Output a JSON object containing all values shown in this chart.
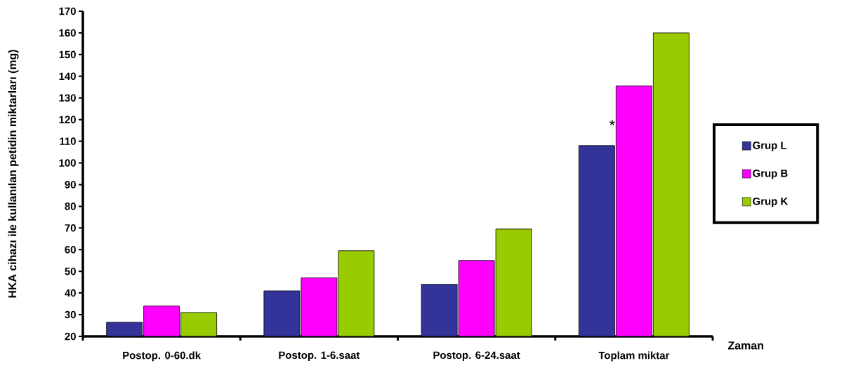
{
  "chart_data": {
    "type": "bar",
    "xlabel": "Zaman",
    "ylabel": "HKA cihazı ile kullanılan petidin miktarları (mg)",
    "categories": [
      "Postop. 0-60.dk",
      "Postop. 1-6.saat",
      "Postop. 6-24.saat",
      "Toplam miktar"
    ],
    "series": [
      {
        "name": "Grup L",
        "color": "#333399",
        "values": [
          26.5,
          41,
          44,
          108
        ]
      },
      {
        "name": "Grup B",
        "color": "#ff00ff",
        "values": [
          34,
          47,
          55,
          135.5
        ]
      },
      {
        "name": "Grup K",
        "color": "#99cc00",
        "values": [
          31,
          59.5,
          69.5,
          160
        ]
      }
    ],
    "ylim": [
      20,
      170
    ],
    "yticks": [
      20,
      30,
      40,
      50,
      60,
      70,
      80,
      90,
      100,
      110,
      120,
      130,
      140,
      150,
      160,
      170
    ],
    "annotations": [
      "*"
    ],
    "grid": false,
    "legend": "right"
  }
}
